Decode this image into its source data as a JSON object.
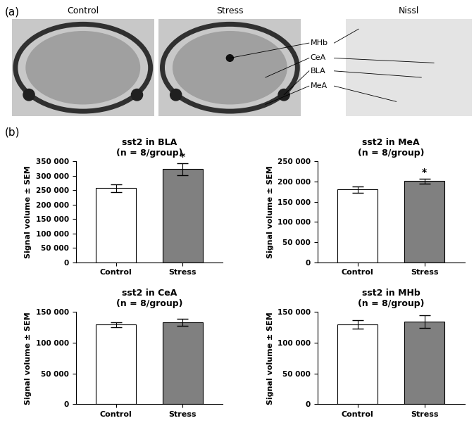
{
  "panel_labels": [
    "(a)",
    "(b)"
  ],
  "images": {
    "titles": [
      "Control",
      "Stress",
      "Nissl"
    ],
    "regions": [
      "MHb",
      "CeA",
      "BLA",
      "MeA"
    ]
  },
  "chart_data": [
    {
      "type": "bar",
      "title": "sst2 in BLA",
      "subtitle": "(n = 8/group)",
      "y_label": "Signal volume ± SEM",
      "categories": [
        "Control",
        "Stress"
      ],
      "values": [
        257000,
        323000
      ],
      "errors": [
        13000,
        21000
      ],
      "colors": [
        "#ffffff",
        "#808080"
      ],
      "annotations": [
        {
          "category": "Stress",
          "text": "*"
        }
      ],
      "ylim": [
        0,
        350000
      ],
      "yticks": [
        0,
        {
          "value": 50000,
          "label": "50 000"
        },
        {
          "value": 100000,
          "label": "100 000"
        },
        {
          "value": 150000,
          "label": "150 000"
        },
        {
          "value": 200000,
          "label": "200 000"
        },
        {
          "value": 250000,
          "label": "250 000"
        },
        {
          "value": 300000,
          "label": "300 000"
        },
        {
          "value": 350000,
          "label": "350 000"
        }
      ]
    },
    {
      "type": "bar",
      "title": "sst2 in MeA",
      "subtitle": "(n = 8/group)",
      "y_label": "Signal volume ± SEM",
      "categories": [
        "Control",
        "Stress"
      ],
      "values": [
        180000,
        201000
      ],
      "errors": [
        8000,
        6000
      ],
      "colors": [
        "#ffffff",
        "#808080"
      ],
      "annotations": [
        {
          "category": "Stress",
          "text": "*"
        }
      ],
      "ylim": [
        0,
        250000
      ],
      "yticks": [
        0,
        {
          "value": 50000,
          "label": "50 000"
        },
        {
          "value": 100000,
          "label": "100 000"
        },
        {
          "value": 150000,
          "label": "150 000"
        },
        {
          "value": 200000,
          "label": "200 000"
        },
        {
          "value": 250000,
          "label": "250 000"
        }
      ]
    },
    {
      "type": "bar",
      "title": "sst2 in CeA",
      "subtitle": "(n = 8/group)",
      "y_label": "Signal volume ± SEM",
      "categories": [
        "Control",
        "Stress"
      ],
      "values": [
        129000,
        133000
      ],
      "errors": [
        4000,
        6000
      ],
      "colors": [
        "#ffffff",
        "#808080"
      ],
      "ylim": [
        0,
        150000
      ],
      "yticks": [
        0,
        {
          "value": 50000,
          "label": "50 000"
        },
        {
          "value": 100000,
          "label": "100 000"
        },
        {
          "value": 150000,
          "label": "150 000"
        }
      ]
    },
    {
      "type": "bar",
      "title": "sst2 in MHb",
      "subtitle": "(n = 8/group)",
      "y_label": "Signal volume ± SEM",
      "categories": [
        "Control",
        "Stress"
      ],
      "values": [
        129000,
        134000
      ],
      "errors": [
        7000,
        10000
      ],
      "colors": [
        "#ffffff",
        "#808080"
      ],
      "ylim": [
        0,
        150000
      ],
      "yticks": [
        0,
        {
          "value": 50000,
          "label": "50 000"
        },
        {
          "value": 100000,
          "label": "100 000"
        },
        {
          "value": 150000,
          "label": "150 000"
        }
      ]
    }
  ]
}
